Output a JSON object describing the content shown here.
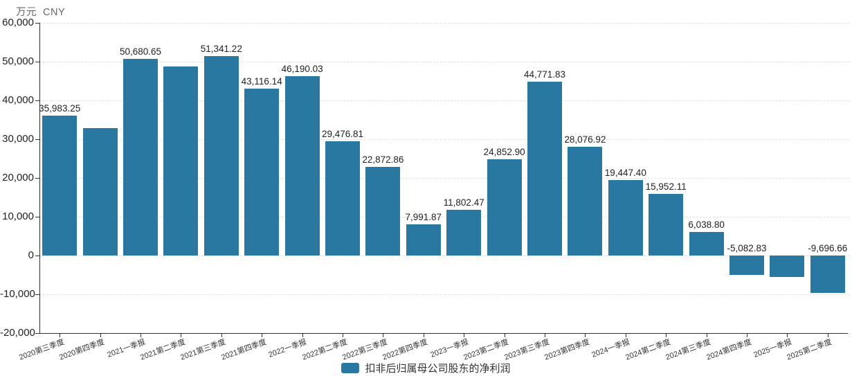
{
  "title": {
    "unit_label": "万元  CNY"
  },
  "legend": {
    "series_label": "扣非后归属母公司股东的净利润"
  },
  "colors": {
    "bar": "#2878a2",
    "axis": "#333333",
    "grid": "#e0e0e0",
    "tick_label": "#222222",
    "value_label": "#222222",
    "category_label": "#333333",
    "title": "#666666"
  },
  "chart_data": {
    "type": "bar",
    "title": "万元  CNY",
    "ylabel": "万元 CNY",
    "xlabel": "",
    "legend_entries": [
      "扣非后归属母公司股东的净利润"
    ],
    "legend_position": "bottom",
    "grid": true,
    "ylim": [
      -20000,
      60000
    ],
    "yticks": [
      {
        "value": 60000,
        "label": "60,000"
      },
      {
        "value": 50000,
        "label": "50,000"
      },
      {
        "value": 40000,
        "label": "40,000"
      },
      {
        "value": 30000,
        "label": "30,000"
      },
      {
        "value": 20000,
        "label": "20,000"
      },
      {
        "value": 10000,
        "label": "10,000"
      },
      {
        "value": 0,
        "label": "0"
      },
      {
        "value": -10000,
        "label": "-10,000"
      },
      {
        "value": -20000,
        "label": "-20,000"
      }
    ],
    "categories": [
      "2020第三季度",
      "2020第四季度",
      "2021一季报",
      "2021第二季度",
      "2021第三季度",
      "2021第四季度",
      "2022一季报",
      "2022第二季度",
      "2022第三季度",
      "2022第四季度",
      "2023一季报",
      "2023第二季度",
      "2023第三季度",
      "2023第四季度",
      "2024一季报",
      "2024第二季度",
      "2024第三季度",
      "2024第四季度",
      "2025一季报",
      "2025第二季度"
    ],
    "values": [
      35983.25,
      32800,
      50680.65,
      48700,
      51341.22,
      43116.14,
      46190.03,
      29476.81,
      22872.86,
      7991.87,
      11802.47,
      24852.9,
      44771.83,
      28076.92,
      19447.4,
      15952.11,
      6038.8,
      -5082.83,
      -5570,
      -9696.66
    ],
    "bar_labels": [
      "35,983.25",
      "",
      "50,680.65",
      "",
      "51,341.22",
      "43,116.14",
      "46,190.03",
      "29,476.81",
      "22,872.86",
      "7,991.87",
      "11,802.47",
      "24,852.90",
      "44,771.83",
      "28,076.92",
      "19,447.40",
      "15,952.11",
      "6,038.80",
      "-5,082.83",
      "",
      "-9,696.66"
    ],
    "unlabeled_values_estimated": [
      32800,
      48700,
      -5570
    ]
  }
}
